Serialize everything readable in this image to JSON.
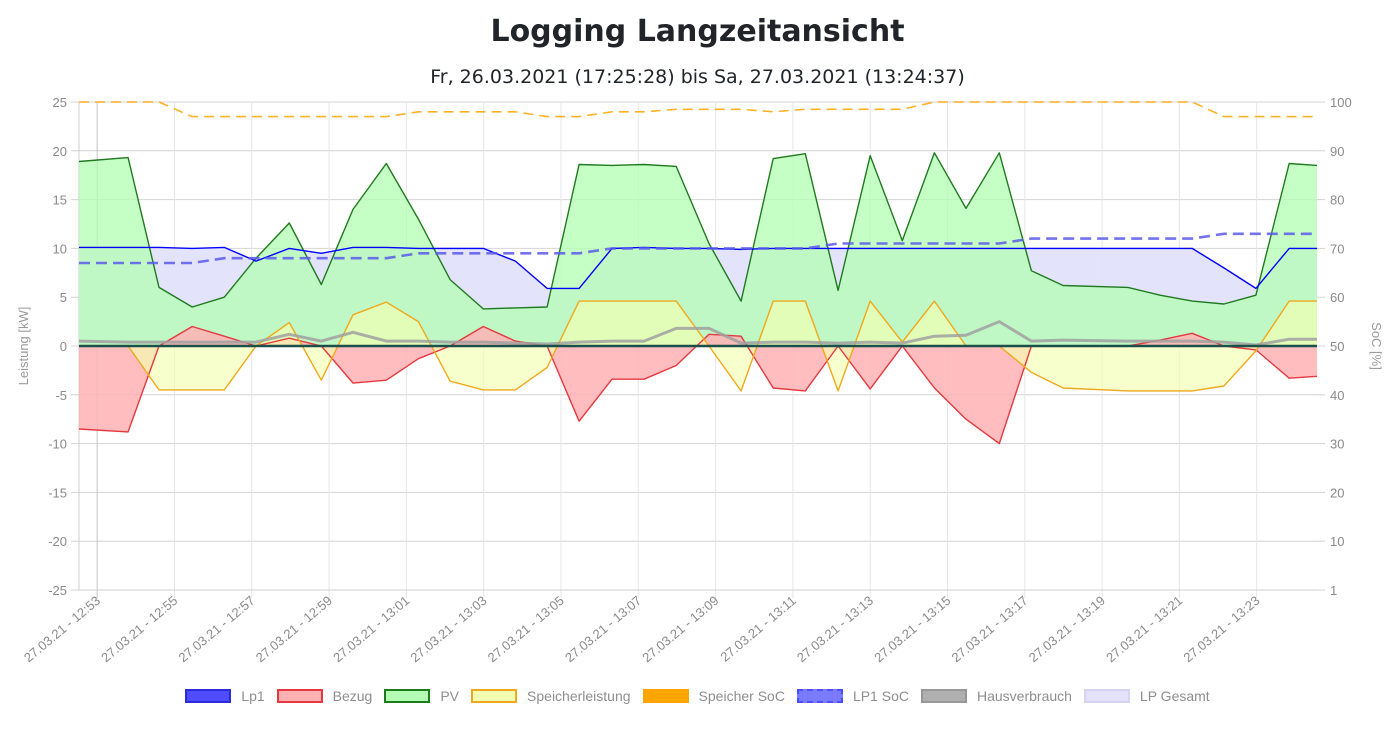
{
  "header": {
    "title": "Logging Langzeitansicht",
    "subtitle": "Fr, 26.03.2021 (17:25:28) bis Sa, 27.03.2021 (13:24:37)"
  },
  "chart_data": {
    "type": "line",
    "title": "Logging Langzeitansicht",
    "subtitle": "Fr, 26.03.2021 (17:25:28) bis Sa, 27.03.2021 (13:24:37)",
    "xlabel": "",
    "x_unit": "minutes after 27.03.21 - 12:53",
    "ylabel": "Leistung [kW]",
    "ylim": [
      -25,
      25
    ],
    "y_ticks": [
      "25",
      "20",
      "15",
      "10",
      "5",
      "0",
      "-5",
      "-10",
      "-15",
      "-20",
      "-25"
    ],
    "y2label": "SoC [%]",
    "y2lim": [
      0,
      100
    ],
    "y2_ticks": [
      "100",
      "90",
      "80",
      "70",
      "60",
      "50",
      "40",
      "30",
      "20",
      "10",
      "1"
    ],
    "x_ticks": [
      {
        "t": 0,
        "label": "27.03.21 - 12:53"
      },
      {
        "t": 2,
        "label": "27.03.21 - 12:55"
      },
      {
        "t": 4,
        "label": "27.03.21 - 12:57"
      },
      {
        "t": 6,
        "label": "27.03.21 - 12:59"
      },
      {
        "t": 8,
        "label": "27.03.21 - 13:01"
      },
      {
        "t": 10,
        "label": "27.03.21 - 13:03"
      },
      {
        "t": 12,
        "label": "27.03.21 - 13:05"
      },
      {
        "t": 14,
        "label": "27.03.21 - 13:07"
      },
      {
        "t": 16,
        "label": "27.03.21 - 13:09"
      },
      {
        "t": 18,
        "label": "27.03.21 - 13:11"
      },
      {
        "t": 20,
        "label": "27.03.21 - 13:13"
      },
      {
        "t": 22,
        "label": "27.03.21 - 13:15"
      },
      {
        "t": 24,
        "label": "27.03.21 - 13:17"
      },
      {
        "t": 26,
        "label": "27.03.21 - 13:19"
      },
      {
        "t": 28,
        "label": "27.03.21 - 13:21"
      },
      {
        "t": 30,
        "label": "27.03.21 - 13:23"
      }
    ],
    "xlim": [
      -0.47,
      31.56
    ],
    "x": [
      -0.47,
      0.8,
      1.6,
      2.46,
      3.29,
      4.11,
      4.97,
      5.8,
      6.62,
      7.48,
      8.31,
      9.13,
      9.99,
      10.82,
      11.64,
      12.47,
      13.32,
      14.15,
      14.98,
      15.83,
      16.66,
      17.49,
      18.32,
      19.17,
      20.0,
      20.83,
      21.66,
      22.48,
      23.34,
      24.17,
      24.99,
      26.67,
      27.5,
      28.33,
      29.15,
      29.98,
      30.84,
      31.56
    ],
    "legend_position": "bottom",
    "grid": true,
    "series": [
      {
        "name": "Lp1",
        "axis": "left",
        "color": "#0000ff",
        "fill": "#4d4dff",
        "values": [
          10.1,
          10.1,
          10.1,
          10.0,
          10.1,
          8.7,
          10.0,
          9.5,
          10.1,
          10.1,
          10.0,
          10.0,
          10.0,
          8.7,
          5.9,
          5.9,
          10.0,
          10.1,
          10.0,
          10.0,
          9.9,
          10.0,
          10.0,
          10.0,
          10.0,
          10.0,
          10.0,
          10.0,
          10.0,
          10.0,
          10.0,
          10.0,
          10.0,
          10.0,
          8.0,
          5.9,
          10.0,
          10.0
        ]
      },
      {
        "name": "Bezug",
        "axis": "left",
        "color": "#e5393f",
        "fill": "#ffb2b4",
        "values": [
          -8.5,
          -8.8,
          0,
          2.0,
          1.0,
          0,
          0.8,
          0,
          -3.8,
          -3.5,
          -1.3,
          0,
          2.0,
          0.5,
          0,
          -7.7,
          -3.4,
          -3.4,
          -2.0,
          1.2,
          1.0,
          -4.3,
          -4.6,
          0,
          -4.4,
          0,
          -4.3,
          -7.5,
          -10.0,
          0,
          0,
          0,
          0.6,
          1.3,
          0,
          -0.4,
          -3.3,
          -3.1
        ]
      },
      {
        "name": "PV",
        "axis": "left",
        "color": "#1f7a1f",
        "fill": "#b3ffb3",
        "values": [
          18.9,
          19.3,
          6.0,
          4.0,
          5.0,
          9.0,
          12.6,
          6.3,
          14.0,
          18.7,
          13.0,
          6.8,
          3.8,
          3.9,
          4.0,
          18.6,
          18.5,
          18.6,
          18.4,
          10.5,
          4.6,
          19.2,
          19.7,
          5.7,
          19.5,
          10.8,
          19.8,
          14.1,
          19.8,
          7.7,
          6.2,
          6.0,
          5.2,
          4.6,
          4.3,
          5.2,
          18.7,
          18.5
        ]
      },
      {
        "name": "Speicherleistung",
        "axis": "left",
        "color": "#f0a81e",
        "fill": "#f2ffb0",
        "values": [
          0,
          0,
          -4.5,
          -4.5,
          -4.5,
          0,
          2.4,
          -3.5,
          3.2,
          4.5,
          2.5,
          -3.6,
          -4.5,
          -4.5,
          -2.2,
          4.6,
          4.6,
          4.6,
          4.6,
          0,
          -4.6,
          4.6,
          4.6,
          -4.6,
          4.6,
          0.4,
          4.6,
          0,
          0,
          -2.7,
          -4.3,
          -4.6,
          -4.6,
          -4.6,
          -4.1,
          -0.5,
          4.6,
          4.6
        ]
      },
      {
        "name": "Speicher SoC",
        "axis": "right",
        "color": "#ffa500",
        "dashed": true,
        "values": [
          100,
          100,
          100,
          97,
          97,
          97,
          97,
          97,
          97,
          97,
          98,
          98,
          98,
          98,
          97,
          97,
          98,
          98,
          98.5,
          98.5,
          98.5,
          98,
          98.5,
          98.5,
          98.5,
          98.5,
          100,
          100,
          100,
          100,
          100,
          100,
          100,
          100,
          97,
          97,
          97,
          97
        ]
      },
      {
        "name": "LP1 SoC",
        "axis": "right",
        "color": "#5b5bea",
        "dashed": true,
        "values": [
          67,
          67,
          67,
          67,
          68,
          68,
          68,
          68,
          68,
          68,
          69,
          69,
          69,
          69,
          69,
          69,
          70,
          70,
          70,
          70,
          70,
          70,
          70,
          71,
          71,
          71,
          71,
          71,
          71,
          72,
          72,
          72,
          72,
          72,
          73,
          73,
          73,
          73
        ]
      },
      {
        "name": "Hausverbrauch",
        "axis": "left",
        "color": "#a0a0a0",
        "fill": "#b0b0b0",
        "values": [
          0.5,
          0.4,
          0.4,
          0.4,
          0.4,
          0.4,
          1.2,
          0.5,
          1.4,
          0.5,
          0.5,
          0.4,
          0.4,
          0.3,
          0.2,
          0.4,
          0.5,
          0.5,
          1.8,
          1.8,
          0.3,
          0.4,
          0.4,
          0.3,
          0.4,
          0.3,
          1.0,
          1.1,
          2.5,
          0.5,
          0.6,
          0.5,
          0.5,
          0.5,
          0.4,
          0.1,
          0.7,
          0.7
        ]
      },
      {
        "name": "LP Gesamt",
        "axis": "left",
        "color": "#c8c8f0",
        "fill": "#e2e2fb",
        "values": [
          10.1,
          10.1,
          10.1,
          10.0,
          10.1,
          8.7,
          10.0,
          9.5,
          10.1,
          10.1,
          10.0,
          10.0,
          10.0,
          8.7,
          5.9,
          5.9,
          10.0,
          10.1,
          10.0,
          10.0,
          9.9,
          10.0,
          10.0,
          10.0,
          10.0,
          10.0,
          10.0,
          10.0,
          10.0,
          10.0,
          10.0,
          10.0,
          10.0,
          10.0,
          8.0,
          5.9,
          10.0,
          10.0
        ]
      }
    ]
  },
  "legend": {
    "items": [
      {
        "label": "Lp1",
        "fill": "#4d4dff",
        "border": "#2b2bd9",
        "style": "solid"
      },
      {
        "label": "Bezug",
        "fill": "#ffb2b4",
        "border": "#e5393f",
        "style": "solid"
      },
      {
        "label": "PV",
        "fill": "#b3ffb3",
        "border": "#1f7a1f",
        "style": "solid"
      },
      {
        "label": "Speicherleistung",
        "fill": "#f2ffb0",
        "border": "#f0a81e",
        "style": "solid"
      },
      {
        "label": "Speicher SoC",
        "fill": "#ffa500",
        "border": "#ffa500",
        "style": "dashed"
      },
      {
        "label": "LP1 SoC",
        "fill": "#7b7bff",
        "border": "#4d4dff",
        "style": "dashed"
      },
      {
        "label": "Hausverbrauch",
        "fill": "#b0b0b0",
        "border": "#999999",
        "style": "solid"
      },
      {
        "label": "LP Gesamt",
        "fill": "#e2e2fb",
        "border": "#d4d4f2",
        "style": "solid"
      }
    ]
  }
}
